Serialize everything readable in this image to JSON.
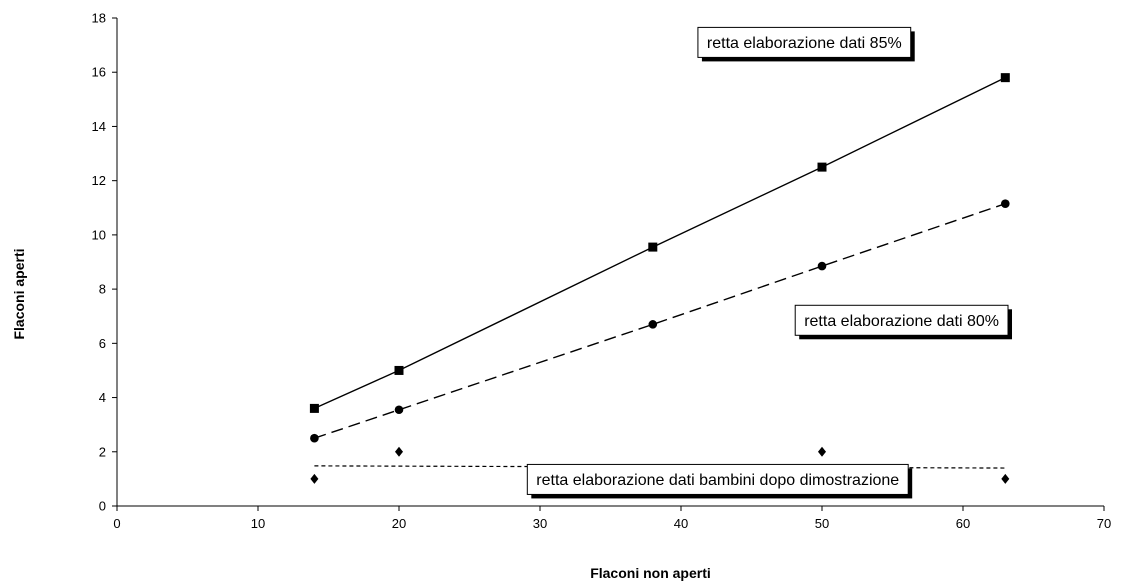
{
  "chart_data": {
    "type": "scatter",
    "title": "",
    "xlabel": "Flaconi non aperti",
    "ylabel": "Flaconi aperti",
    "xlim": [
      0,
      70
    ],
    "ylim": [
      0,
      18
    ],
    "x_ticks": [
      0,
      10,
      20,
      30,
      40,
      50,
      60,
      70
    ],
    "y_ticks": [
      0,
      2,
      4,
      6,
      8,
      10,
      12,
      14,
      16,
      18
    ],
    "grid": false,
    "legend": "none",
    "series": [
      {
        "marker": "square",
        "line_style": "solid",
        "color": "#000000",
        "points": [
          [
            14,
            3.6
          ],
          [
            20,
            5.0
          ],
          [
            38,
            9.55
          ],
          [
            50,
            12.5
          ],
          [
            63,
            15.8
          ]
        ]
      },
      {
        "marker": "circle",
        "line_style": "dashed",
        "color": "#000000",
        "points": [
          [
            14,
            2.5
          ],
          [
            20,
            3.55
          ],
          [
            38,
            6.7
          ],
          [
            50,
            8.85
          ],
          [
            63,
            11.15
          ]
        ]
      },
      {
        "marker": "diamond",
        "line_style": "none",
        "color": "#000000",
        "points": [
          [
            14,
            1
          ],
          [
            20,
            2
          ],
          [
            38,
            1
          ],
          [
            50,
            2
          ],
          [
            63,
            1
          ]
        ]
      }
    ],
    "trend_lines": [
      {
        "style": "dotted",
        "from": [
          14,
          1.48
        ],
        "to": [
          63,
          1.4
        ]
      }
    ],
    "annotations": [
      {
        "text": "retta elaborazione dati 85%",
        "anchor_data": [
          41.2,
          17.1
        ]
      },
      {
        "text": "retta elaborazione dati 80%",
        "anchor_data": [
          48.1,
          6.85
        ]
      },
      {
        "text": "retta elaborazione dati bambini dopo dimostrazione",
        "anchor_data": [
          29.1,
          0.98
        ]
      }
    ]
  }
}
